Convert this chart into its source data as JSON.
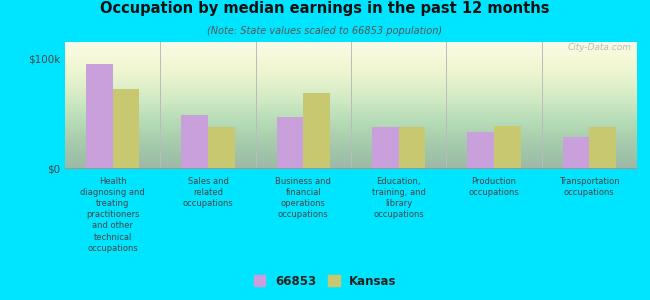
{
  "title": "Occupation by median earnings in the past 12 months",
  "subtitle": "(Note: State values scaled to 66853 population)",
  "categories": [
    "Health\ndiagnosing and\ntreating\npractitioners\nand other\ntechnical\noccupations",
    "Sales and\nrelated\noccupations",
    "Business and\nfinancial\noperations\noccupations",
    "Education,\ntraining, and\nlibrary\noccupations",
    "Production\noccupations",
    "Transportation\noccupations"
  ],
  "values_66853": [
    95000,
    48000,
    47000,
    37000,
    33000,
    28000
  ],
  "values_kansas": [
    72000,
    37000,
    68000,
    37000,
    38000,
    37000
  ],
  "color_66853": "#c9a0dc",
  "color_kansas": "#c8c870",
  "yticks": [
    0,
    100000
  ],
  "ytick_labels": [
    "$0",
    "$100k"
  ],
  "background_color": "#00e5ff",
  "plot_bg_top": "#f5f8e8",
  "plot_bg_bottom": "#e8f0d0",
  "watermark": "City-Data.com",
  "legend_label_1": "66853",
  "legend_label_2": "Kansas"
}
